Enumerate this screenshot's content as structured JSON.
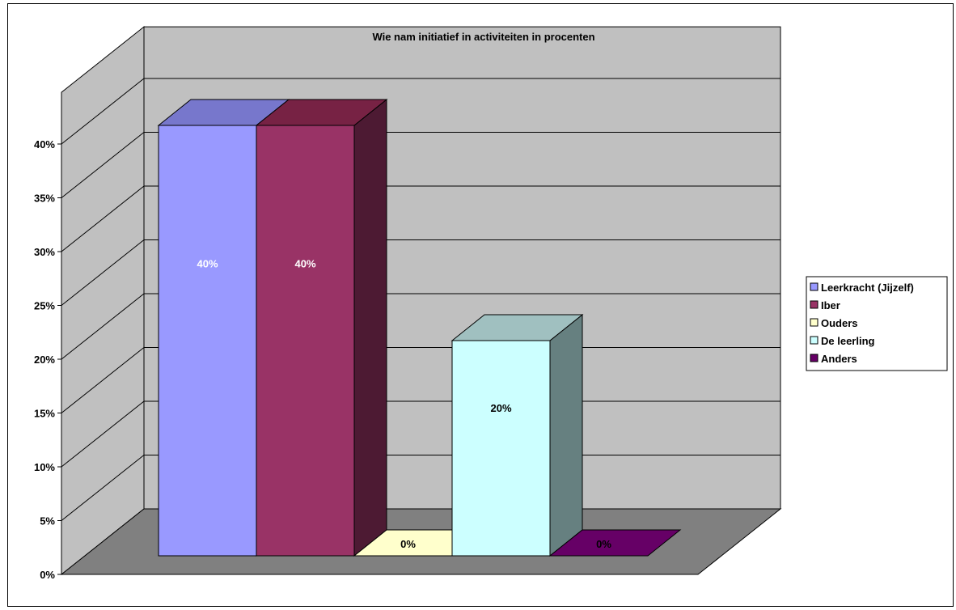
{
  "chart_data": {
    "type": "bar",
    "title": "Wie nam initiatief in activiteiten in procenten",
    "xlabel": "",
    "ylabel": "",
    "categories": [
      "Leerkracht (Jijzelf)",
      "Iber",
      "Ouders",
      "De leerling",
      "Anders"
    ],
    "values": [
      40,
      40,
      0,
      20,
      0
    ],
    "data_labels": [
      "40%",
      "40%",
      "0%",
      "20%",
      "0%"
    ],
    "ylim": [
      0,
      40
    ],
    "yticks": [
      0,
      5,
      10,
      15,
      20,
      25,
      30,
      35,
      40
    ],
    "ytick_labels": [
      "0%",
      "5%",
      "10%",
      "15%",
      "20%",
      "25%",
      "30%",
      "35%",
      "40%"
    ],
    "grid": true,
    "three_d": true,
    "legend_position": "right",
    "colors": {
      "front": [
        "#9999ff",
        "#993366",
        "#ffffcc",
        "#ccffff",
        "#660066"
      ],
      "top": [
        "#7777cc",
        "#772244",
        "#ccccaa",
        "#a0c0c0",
        "#550055"
      ],
      "side": [
        "#555599",
        "#4d1a33",
        "#aaaa88",
        "#668080",
        "#330033"
      ],
      "label": [
        "#ffffff",
        "#ffffff",
        "#000000",
        "#000000",
        "#ffffff"
      ],
      "back_wall": "#c0c0c0",
      "floor": "#808080"
    }
  }
}
